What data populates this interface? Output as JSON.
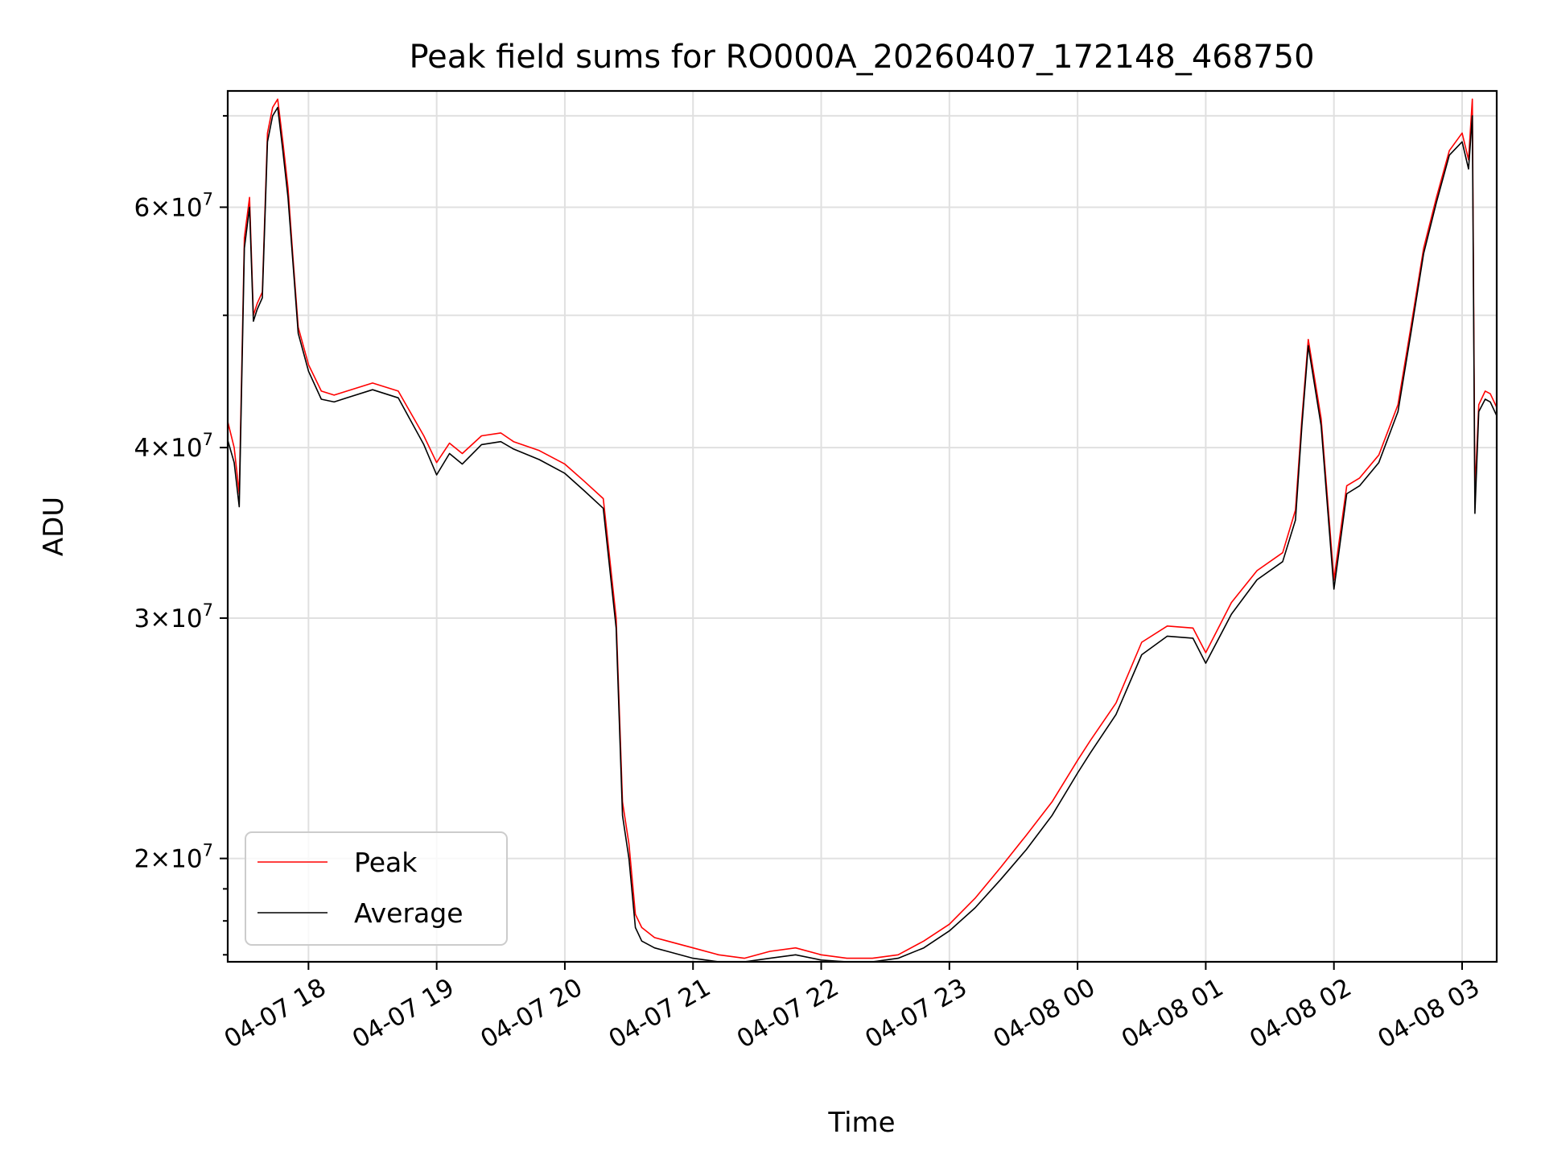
{
  "chart_data": {
    "type": "line",
    "title": "Peak field sums for RO000A_20260407_172148_468750",
    "xlabel": "Time",
    "ylabel": "ADU",
    "yscale": "log",
    "grid": true,
    "legend_position": "lower-left",
    "xlim": [
      17.37,
      27.27
    ],
    "ylim": [
      16800000,
      73000000
    ],
    "x_ticks": [
      {
        "value": 18,
        "label": "04-07 18"
      },
      {
        "value": 19,
        "label": "04-07 19"
      },
      {
        "value": 20,
        "label": "04-07 20"
      },
      {
        "value": 21,
        "label": "04-07 21"
      },
      {
        "value": 22,
        "label": "04-07 22"
      },
      {
        "value": 23,
        "label": "04-07 23"
      },
      {
        "value": 24,
        "label": "04-08 00"
      },
      {
        "value": 25,
        "label": "04-08 01"
      },
      {
        "value": 26,
        "label": "04-08 02"
      },
      {
        "value": 27,
        "label": "04-08 03"
      }
    ],
    "y_ticks_major": [
      {
        "value": 20000000,
        "mantissa": "2",
        "exponent": "7"
      },
      {
        "value": 30000000,
        "mantissa": "3",
        "exponent": "7"
      },
      {
        "value": 40000000,
        "mantissa": "4",
        "exponent": "7"
      },
      {
        "value": 60000000,
        "mantissa": "6",
        "exponent": "7"
      }
    ],
    "y_ticks_minor": [
      50000000,
      70000000
    ],
    "series": [
      {
        "name": "Peak",
        "color": "#ff0000",
        "x": [
          17.37,
          17.42,
          17.46,
          17.5,
          17.54,
          17.57,
          17.6,
          17.64,
          17.68,
          17.72,
          17.76,
          17.8,
          17.84,
          17.88,
          17.92,
          18.0,
          18.1,
          18.2,
          18.3,
          18.5,
          18.7,
          18.9,
          19.0,
          19.1,
          19.2,
          19.35,
          19.5,
          19.6,
          19.8,
          20.0,
          20.15,
          20.3,
          20.4,
          20.45,
          20.5,
          20.55,
          20.6,
          20.7,
          20.8,
          21.0,
          21.2,
          21.4,
          21.6,
          21.8,
          22.0,
          22.2,
          22.4,
          22.6,
          22.8,
          23.0,
          23.2,
          23.4,
          23.6,
          23.8,
          24.0,
          24.1,
          24.3,
          24.5,
          24.7,
          24.9,
          25.0,
          25.2,
          25.4,
          25.6,
          25.7,
          25.75,
          25.8,
          25.9,
          26.0,
          26.1,
          26.2,
          26.35,
          26.5,
          26.6,
          26.7,
          26.8,
          26.9,
          27.0,
          27.05,
          27.08,
          27.1,
          27.13,
          27.18,
          27.22,
          27.27
        ],
        "y": [
          41800000,
          40000000,
          37000000,
          57000000,
          61000000,
          50000000,
          51000000,
          52000000,
          68000000,
          71000000,
          72000000,
          67000000,
          62000000,
          55000000,
          49000000,
          46000000,
          44000000,
          43700000,
          44000000,
          44600000,
          44000000,
          40800000,
          39000000,
          40300000,
          39600000,
          40800000,
          41000000,
          40400000,
          39800000,
          38900000,
          37800000,
          36700000,
          30000000,
          22000000,
          20500000,
          18200000,
          17800000,
          17500000,
          17400000,
          17200000,
          17000000,
          16900000,
          17100000,
          17200000,
          17000000,
          16900000,
          16900000,
          17000000,
          17400000,
          17900000,
          18700000,
          19700000,
          20800000,
          22000000,
          23600000,
          24400000,
          26000000,
          28800000,
          29600000,
          29500000,
          28300000,
          30800000,
          32500000,
          33500000,
          36000000,
          42000000,
          48000000,
          42000000,
          32000000,
          37500000,
          38000000,
          39500000,
          43000000,
          49000000,
          56000000,
          61000000,
          66000000,
          68000000,
          65000000,
          72000000,
          37000000,
          43000000,
          44000000,
          43800000,
          42800000
        ]
      },
      {
        "name": "Average",
        "color": "#000000",
        "x": [
          17.37,
          17.42,
          17.46,
          17.5,
          17.54,
          17.57,
          17.6,
          17.64,
          17.68,
          17.72,
          17.76,
          17.8,
          17.84,
          17.88,
          17.92,
          18.0,
          18.1,
          18.2,
          18.3,
          18.5,
          18.7,
          18.9,
          19.0,
          19.1,
          19.2,
          19.35,
          19.5,
          19.6,
          19.8,
          20.0,
          20.15,
          20.3,
          20.4,
          20.45,
          20.5,
          20.55,
          20.6,
          20.7,
          20.8,
          21.0,
          21.2,
          21.4,
          21.6,
          21.8,
          22.0,
          22.2,
          22.4,
          22.6,
          22.8,
          23.0,
          23.2,
          23.4,
          23.6,
          23.8,
          24.0,
          24.1,
          24.3,
          24.5,
          24.7,
          24.9,
          25.0,
          25.2,
          25.4,
          25.6,
          25.7,
          25.75,
          25.8,
          25.9,
          26.0,
          26.1,
          26.2,
          26.35,
          26.5,
          26.6,
          26.7,
          26.8,
          26.9,
          27.0,
          27.05,
          27.08,
          27.1,
          27.13,
          27.18,
          27.22,
          27.27
        ],
        "y": [
          40500000,
          39000000,
          36200000,
          56000000,
          60000000,
          49500000,
          50500000,
          51500000,
          67000000,
          70000000,
          71000000,
          66000000,
          61000000,
          54500000,
          48500000,
          45500000,
          43400000,
          43200000,
          43500000,
          44100000,
          43500000,
          40200000,
          38200000,
          39600000,
          38900000,
          40200000,
          40400000,
          39900000,
          39200000,
          38300000,
          37200000,
          36100000,
          29500000,
          21500000,
          20000000,
          17800000,
          17400000,
          17200000,
          17100000,
          16900000,
          16800000,
          16800000,
          16900000,
          17000000,
          16850000,
          16800000,
          16800000,
          16900000,
          17200000,
          17700000,
          18400000,
          19300000,
          20300000,
          21500000,
          23100000,
          23900000,
          25500000,
          28200000,
          29100000,
          29000000,
          27800000,
          30200000,
          32000000,
          33000000,
          35400000,
          41500000,
          47500000,
          41500000,
          31500000,
          37000000,
          37500000,
          39000000,
          42500000,
          48500000,
          55500000,
          60500000,
          65500000,
          67000000,
          64000000,
          70000000,
          35800000,
          42500000,
          43400000,
          43200000,
          42200000
        ]
      }
    ]
  }
}
